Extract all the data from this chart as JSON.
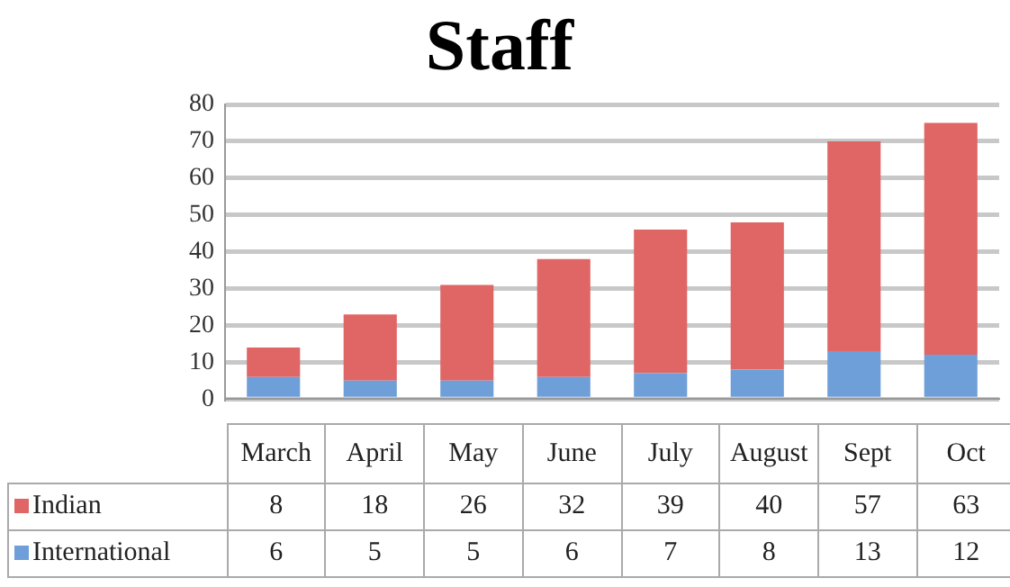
{
  "chart_data": {
    "type": "bar",
    "title": "Staff",
    "categories": [
      "March",
      "April",
      "May",
      "June",
      "July",
      "August",
      "Sept",
      "Oct"
    ],
    "series": [
      {
        "name": "International",
        "color": "#6f9fd8",
        "values": [
          6,
          5,
          5,
          6,
          7,
          8,
          13,
          12
        ]
      },
      {
        "name": "Indian",
        "color": "#e06666",
        "values": [
          8,
          18,
          26,
          32,
          39,
          40,
          57,
          63
        ]
      }
    ],
    "stacked": true,
    "ylim": [
      0,
      80
    ],
    "yticks": [
      0,
      10,
      20,
      30,
      40,
      50,
      60,
      70,
      80
    ],
    "grid": "y",
    "legend": "bottom",
    "data_labels": true
  }
}
